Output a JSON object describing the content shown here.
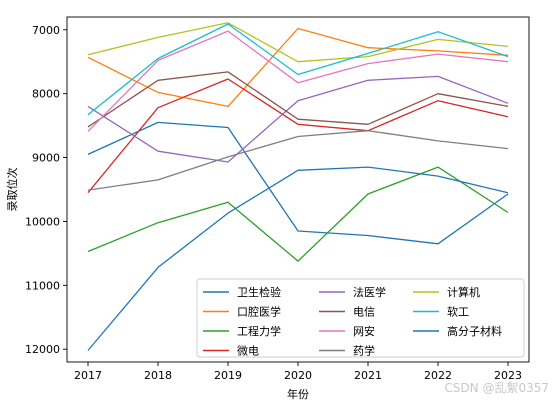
{
  "chart_data": {
    "type": "line",
    "title": "",
    "xlabel": "年份",
    "ylabel": "录取位次",
    "x": [
      2017,
      2018,
      2019,
      2020,
      2021,
      2022,
      2023
    ],
    "ylim": [
      12200,
      6800
    ],
    "y_inverted": true,
    "yticks": [
      7000,
      8000,
      9000,
      10000,
      11000,
      12000
    ],
    "grid": false,
    "legend_position": "lower-right",
    "legend_columns": 3,
    "series": [
      {
        "name": "卫生检验",
        "color": "#1f77b4",
        "values": [
          8950,
          8450,
          8530,
          10150,
          10220,
          10350,
          9570
        ]
      },
      {
        "name": "口腔医学",
        "color": "#ff7f0e",
        "values": [
          7430,
          7980,
          8200,
          6980,
          7280,
          7330,
          7400
        ]
      },
      {
        "name": "工程力学",
        "color": "#2ca02c",
        "values": [
          10470,
          10020,
          9700,
          10620,
          9570,
          9150,
          9860
        ]
      },
      {
        "name": "微电",
        "color": "#d62728",
        "values": [
          9550,
          8220,
          7770,
          8480,
          8580,
          8110,
          8360
        ]
      },
      {
        "name": "法医学",
        "color": "#9467bd",
        "values": [
          8200,
          8900,
          9070,
          8110,
          7790,
          7730,
          8150
        ]
      },
      {
        "name": "电信",
        "color": "#8c564b",
        "values": [
          8520,
          7790,
          7660,
          8400,
          8480,
          8000,
          8200
        ]
      },
      {
        "name": "网安",
        "color": "#e377c2",
        "values": [
          8590,
          7480,
          7020,
          7830,
          7530,
          7380,
          7500
        ]
      },
      {
        "name": "药学",
        "color": "#7f7f7f",
        "values": [
          9510,
          9350,
          8990,
          8670,
          8580,
          8740,
          8860
        ]
      },
      {
        "name": "计算机",
        "color": "#bcbd22",
        "values": [
          7390,
          7120,
          6890,
          7500,
          7420,
          7150,
          7260
        ]
      },
      {
        "name": "软工",
        "color": "#17becf",
        "values": [
          8330,
          7450,
          6910,
          7700,
          7370,
          7030,
          7420
        ]
      },
      {
        "name": "高分子材料",
        "color": "#1f77b4",
        "values": [
          12020,
          10720,
          9870,
          9200,
          9150,
          9290,
          9550
        ]
      }
    ]
  },
  "watermark": "CSDN @乱絮0357"
}
